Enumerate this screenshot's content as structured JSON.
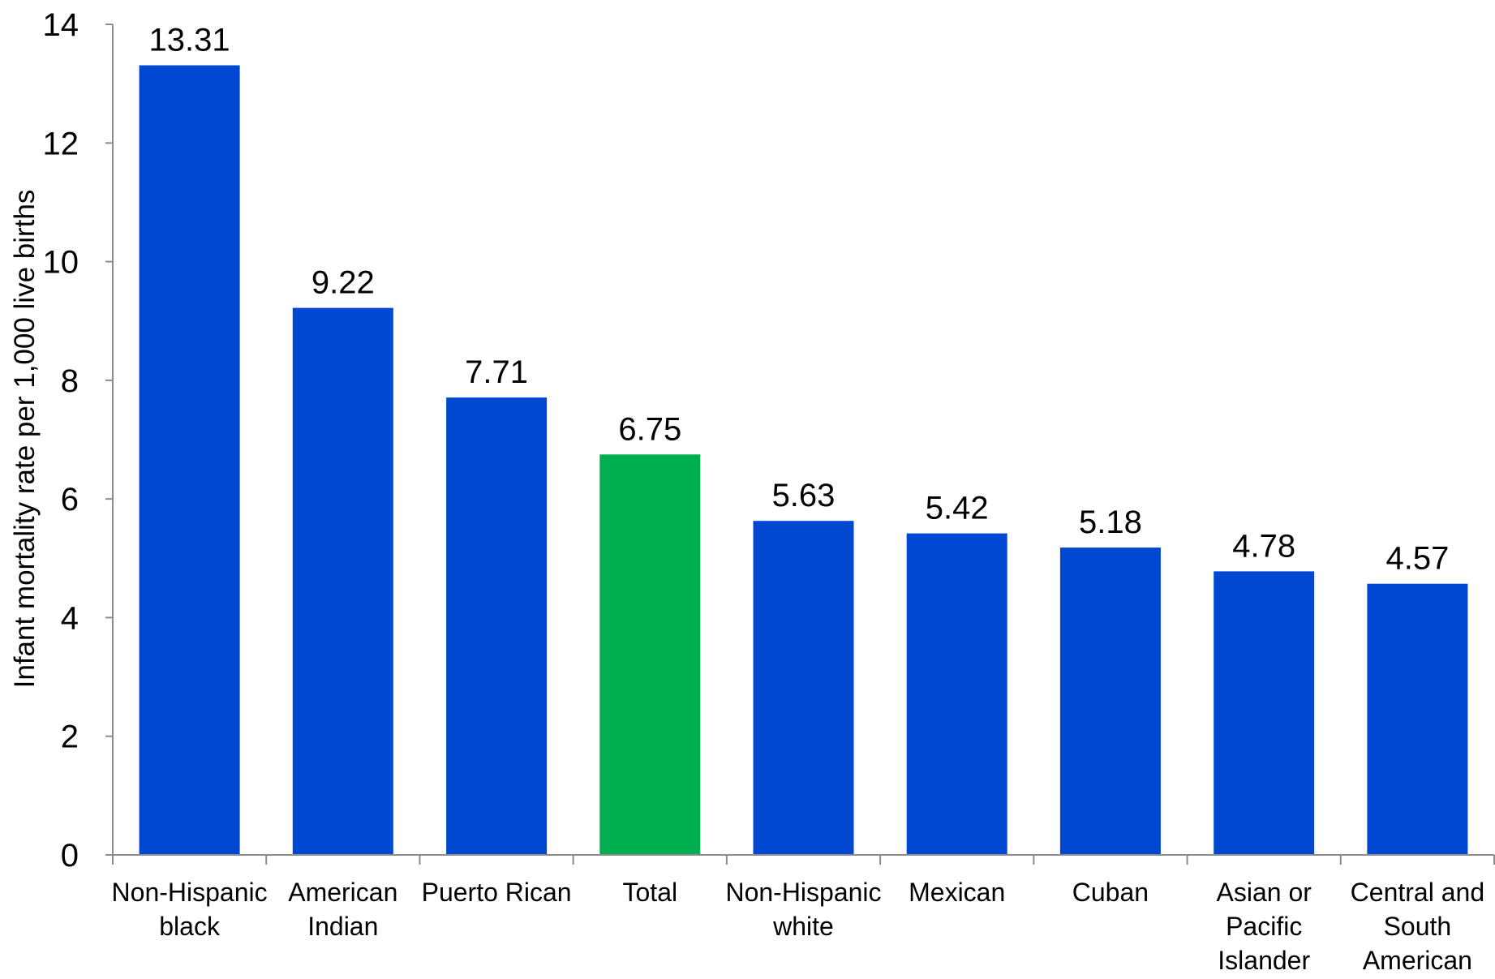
{
  "chart_data": {
    "type": "bar",
    "title": "",
    "xlabel": "",
    "ylabel": "Infant mortality rate per 1,000 live births",
    "ylim": [
      0,
      14
    ],
    "yticks": [
      0,
      2,
      4,
      6,
      8,
      10,
      12,
      14
    ],
    "grid": false,
    "categories": [
      [
        "Non-Hispanic",
        "black"
      ],
      [
        "American",
        "Indian"
      ],
      [
        "Puerto Rican"
      ],
      [
        "Total"
      ],
      [
        "Non-Hispanic",
        "white"
      ],
      [
        "Mexican"
      ],
      [
        "Cuban"
      ],
      [
        "Asian or",
        "Pacific",
        "Islander"
      ],
      [
        "Central and",
        "South",
        "American"
      ]
    ],
    "values": [
      13.31,
      9.22,
      7.71,
      6.75,
      5.63,
      5.42,
      5.18,
      4.78,
      4.57
    ],
    "value_labels": [
      "13.31",
      "9.22",
      "7.71",
      "6.75",
      "5.63",
      "5.42",
      "5.18",
      "4.78",
      "4.57"
    ],
    "colors": {
      "default": "#0047d1",
      "highlight": "#00b050",
      "highlight_category_index": 3
    }
  }
}
